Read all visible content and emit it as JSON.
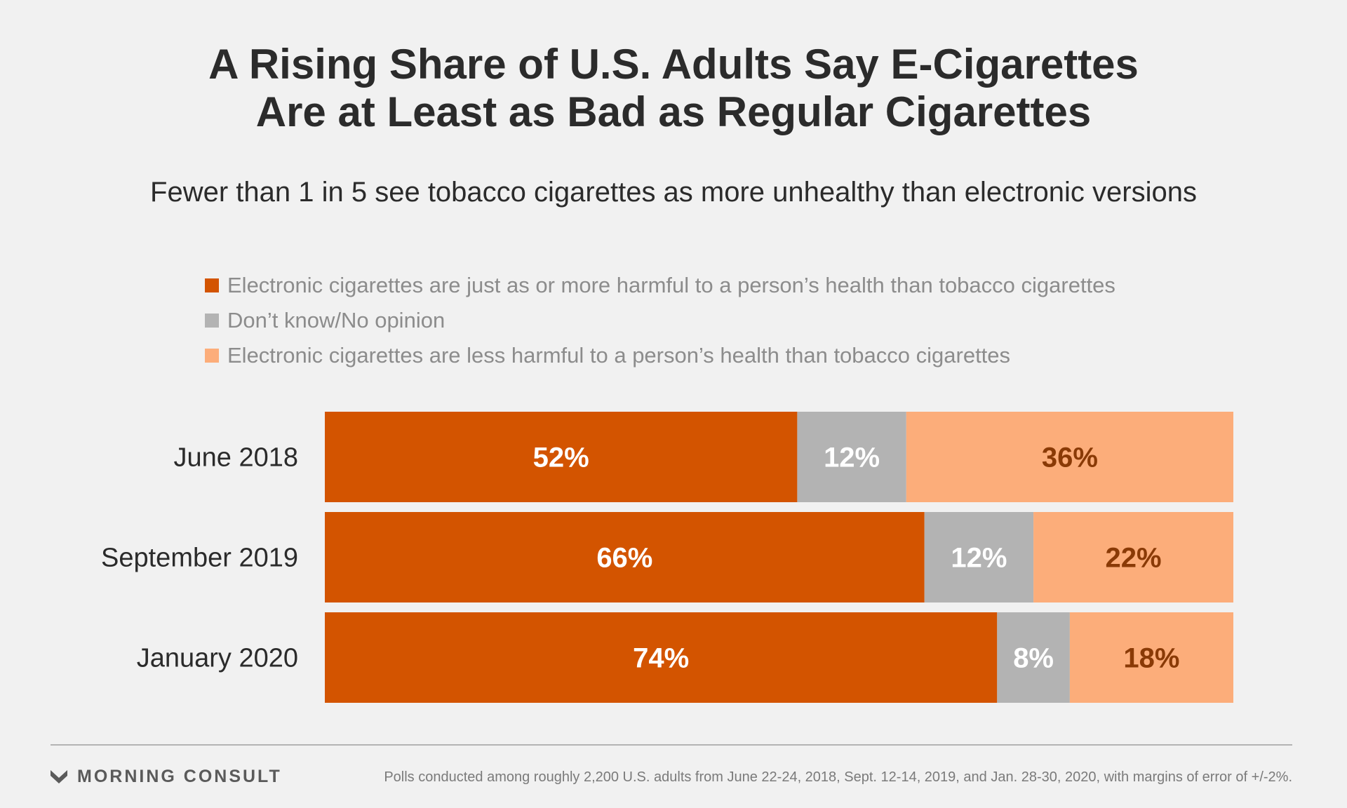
{
  "title_line1": "A Rising Share of U.S. Adults Say E-Cigarettes",
  "title_line2": "Are at Least as Bad as Regular Cigarettes",
  "subtitle": "Fewer than 1 in 5 see tobacco cigarettes as more unhealthy than electronic versions",
  "brand": "MORNING CONSULT",
  "brand_icon": "morning-consult-logo-icon",
  "footnote": "Polls conducted among roughly 2,200 U.S. adults from June 22-24, 2018, Sept. 12-14, 2019, and Jan. 28-30, 2020, with margins of error of +/-2%.",
  "colors": {
    "harmful": "#d35400",
    "dont_know": "#b3b3b3",
    "less_harmful": "#fcad7a",
    "label_dark": "#8a3a06"
  },
  "chart_data": {
    "type": "bar",
    "orientation": "horizontal",
    "stacked": true,
    "normalized": true,
    "categories": [
      "June 2018",
      "September 2019",
      "January 2020"
    ],
    "series": [
      {
        "name": "Electronic cigarettes are just as or more harmful to a person’s health than tobacco cigarettes",
        "values": [
          52,
          66,
          74
        ],
        "labels": [
          "52%",
          "66%",
          "74%"
        ]
      },
      {
        "name": "Don’t know/No opinion",
        "values": [
          12,
          12,
          8
        ],
        "labels": [
          "12%",
          "12%",
          "8%"
        ]
      },
      {
        "name": "Electronic cigarettes are less harmful to a person’s health than tobacco cigarettes",
        "values": [
          36,
          22,
          18
        ],
        "labels": [
          "36%",
          "22%",
          "18%"
        ]
      }
    ],
    "xlim": [
      0,
      100
    ],
    "legend_position": "top-left",
    "grid": false
  }
}
